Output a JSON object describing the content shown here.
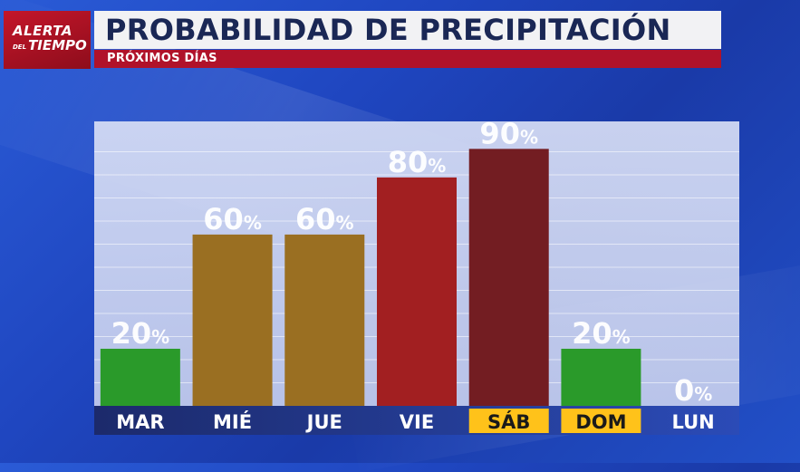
{
  "logo": {
    "line1": "ALERTA",
    "small": "DEL",
    "line2": "TIEMPO"
  },
  "header": {
    "title": "PROBABILIDAD DE PRECIPITACIÓN",
    "subtitle": "PRÓXIMOS DÍAS"
  },
  "colors": {
    "green": "#2a9a2a",
    "gold": "#9a6f22",
    "red": "#a21f21",
    "darkred": "#731d22",
    "highlight": "#ffc21a"
  },
  "chart_data": {
    "type": "bar",
    "categories": [
      "MAR",
      "MIÉ",
      "JUE",
      "VIE",
      "SÁB",
      "DOM",
      "LUN"
    ],
    "values": [
      20,
      60,
      60,
      80,
      90,
      20,
      0
    ],
    "unit": "%",
    "ylim": [
      0,
      100
    ],
    "grid": true,
    "bar_colors": [
      "#2a9a2a",
      "#9a6f22",
      "#9a6f22",
      "#a21f21",
      "#731d22",
      "#2a9a2a",
      "#2a9a2a"
    ],
    "highlighted_days": [
      "SÁB",
      "DOM"
    ]
  }
}
